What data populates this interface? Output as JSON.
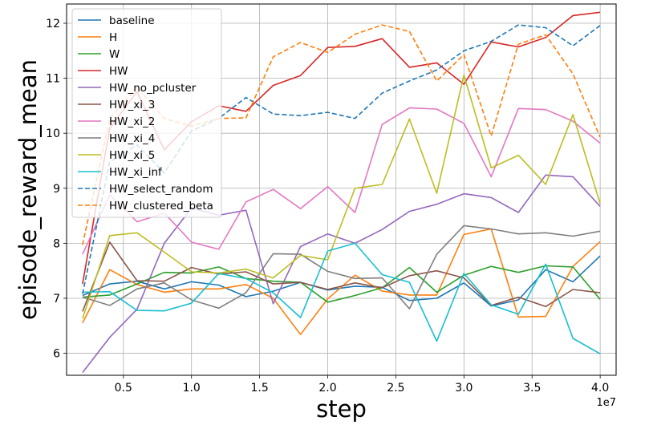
{
  "chart_data": {
    "type": "line",
    "xlabel": "step",
    "ylabel": "episode_reward_mean",
    "x_offset_label": "1e7",
    "xlim": [
      0.2,
      4.0
    ],
    "ylim": [
      5.6,
      12.35
    ],
    "xticks": [
      "0.5",
      "1.0",
      "1.5",
      "2.0",
      "2.5",
      "3.0",
      "3.5",
      "4.0"
    ],
    "yticks": [
      "6",
      "7",
      "8",
      "9",
      "10",
      "11",
      "12"
    ],
    "grid": true,
    "legend_position": "upper left",
    "x": [
      0.2,
      0.4,
      0.6,
      0.8,
      1.0,
      1.2,
      1.4,
      1.6,
      1.8,
      2.0,
      2.2,
      2.4,
      2.6,
      2.8,
      3.0,
      3.2,
      3.4,
      3.6,
      3.8,
      4.0
    ],
    "series": [
      {
        "name": "baseline",
        "color": "#1f77b4",
        "dash": "solid",
        "values": [
          7.05,
          7.26,
          7.31,
          7.17,
          7.3,
          7.24,
          7.03,
          7.13,
          7.29,
          7.15,
          7.22,
          7.2,
          6.96,
          7.0,
          7.28,
          6.86,
          6.97,
          7.52,
          7.3,
          7.77
        ]
      },
      {
        "name": "H",
        "color": "#ff7f0e",
        "dash": "solid",
        "values": [
          6.55,
          7.52,
          7.25,
          7.11,
          7.17,
          7.17,
          7.25,
          7.0,
          6.34,
          6.99,
          7.42,
          7.13,
          7.06,
          7.06,
          8.16,
          8.26,
          6.66,
          6.67,
          7.58,
          8.03
        ]
      },
      {
        "name": "W",
        "color": "#2ca02c",
        "dash": "solid",
        "values": [
          7.02,
          7.06,
          7.26,
          7.47,
          7.46,
          7.57,
          7.36,
          7.31,
          7.29,
          6.93,
          7.05,
          7.19,
          7.56,
          7.11,
          7.42,
          7.58,
          7.47,
          7.59,
          7.57,
          6.98
        ]
      },
      {
        "name": "HW",
        "color": "#d62728",
        "dash": "solid",
        "values": [
          7.26,
          10.09,
          10.76,
          9.7,
          10.21,
          10.5,
          10.4,
          10.87,
          11.05,
          11.56,
          11.58,
          11.72,
          11.2,
          11.28,
          10.89,
          11.66,
          11.57,
          11.74,
          12.14,
          12.2
        ]
      },
      {
        "name": "HW_no_pcluster",
        "color": "#9467bd",
        "dash": "solid",
        "values": [
          5.65,
          6.29,
          6.8,
          8.0,
          8.64,
          8.51,
          8.6,
          6.9,
          7.94,
          8.17,
          8.0,
          8.25,
          8.58,
          8.71,
          8.9,
          8.83,
          8.56,
          9.24,
          9.21,
          8.67
        ]
      },
      {
        "name": "HW_xi_3",
        "color": "#8c564b",
        "dash": "solid",
        "values": [
          6.76,
          8.02,
          7.32,
          7.31,
          7.56,
          7.44,
          7.48,
          7.26,
          7.29,
          7.16,
          7.28,
          7.19,
          7.41,
          7.5,
          7.37,
          6.87,
          7.02,
          6.85,
          7.16,
          7.1
        ]
      },
      {
        "name": "HW_xi_2",
        "color": "#e377c2",
        "dash": "solid",
        "values": [
          7.8,
          8.88,
          8.39,
          8.55,
          8.02,
          7.89,
          8.75,
          8.98,
          8.63,
          9.03,
          8.56,
          10.16,
          10.46,
          10.44,
          10.18,
          9.21,
          10.45,
          10.43,
          10.22,
          9.82
        ]
      },
      {
        "name": "HW_xi_4",
        "color": "#7f7f7f",
        "dash": "solid",
        "values": [
          7.02,
          6.87,
          7.17,
          7.28,
          6.97,
          6.82,
          7.1,
          7.81,
          7.8,
          7.49,
          7.36,
          7.37,
          6.81,
          7.8,
          8.32,
          8.26,
          8.17,
          8.19,
          8.13,
          8.22
        ]
      },
      {
        "name": "HW_xi_5",
        "color": "#bcbd22",
        "dash": "solid",
        "values": [
          6.63,
          8.14,
          8.19,
          7.84,
          7.48,
          7.46,
          7.53,
          7.37,
          7.78,
          7.7,
          9.0,
          9.07,
          10.26,
          8.91,
          11.06,
          9.37,
          9.6,
          9.07,
          10.34,
          8.72
        ]
      },
      {
        "name": "HW_xi_inf",
        "color": "#17becf",
        "dash": "solid",
        "values": [
          7.11,
          7.12,
          6.78,
          6.77,
          6.91,
          7.45,
          7.36,
          7.1,
          6.65,
          7.86,
          8.0,
          7.43,
          7.29,
          6.22,
          7.45,
          6.88,
          6.71,
          7.62,
          6.27,
          5.99
        ]
      },
      {
        "name": "HW_select_random",
        "color": "#1f77b4",
        "dash": "dashed",
        "values": [
          7.08,
          9.48,
          9.79,
          9.28,
          10.04,
          10.27,
          10.65,
          10.35,
          10.32,
          10.38,
          10.27,
          10.73,
          10.95,
          11.15,
          11.5,
          11.67,
          11.97,
          11.92,
          11.59,
          11.96
        ]
      },
      {
        "name": "HW_clustered_beta",
        "color": "#ff7f0e",
        "dash": "dashed",
        "values": [
          7.97,
          10.27,
          10.84,
          10.27,
          10.13,
          10.27,
          10.28,
          11.39,
          11.65,
          11.47,
          11.8,
          11.97,
          11.85,
          10.95,
          11.43,
          9.95,
          11.62,
          11.79,
          11.08,
          9.93
        ]
      }
    ]
  }
}
